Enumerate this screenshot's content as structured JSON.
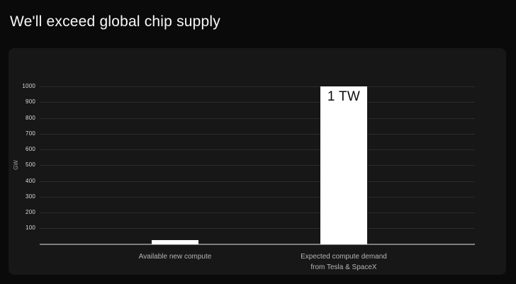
{
  "page": {
    "title": "We'll exceed global chip supply"
  },
  "chart_data": {
    "type": "bar",
    "title": "We'll exceed global chip supply",
    "xlabel": "",
    "ylabel": "GW",
    "unit": "GW",
    "yticks": [
      100,
      200,
      300,
      400,
      500,
      600,
      700,
      800,
      900,
      1000
    ],
    "ylim": [
      0,
      1045
    ],
    "grid": true,
    "legend": false,
    "categories": [
      "Available new compute",
      "Expected compute demand\nfrom Tesla & SpaceX"
    ],
    "values": [
      25,
      1000
    ],
    "bar_value_labels": [
      "",
      "1 TW"
    ],
    "bar_names": [
      "bar-available-new-compute",
      "bar-expected-compute-demand"
    ],
    "colors": {
      "page_background": "#0a0a0b",
      "panel_background": "#171717",
      "bar_fill": "#ffffff",
      "bar_label_text": "#0d0d0d",
      "gridline": "#2b2b2b",
      "axis_line": "#7e7e7e",
      "tick_text": "#d9d9d9",
      "axis_label_text": "#9b9b9b",
      "category_text": "#b5b5b5",
      "title_text": "#f7f7f7"
    }
  }
}
